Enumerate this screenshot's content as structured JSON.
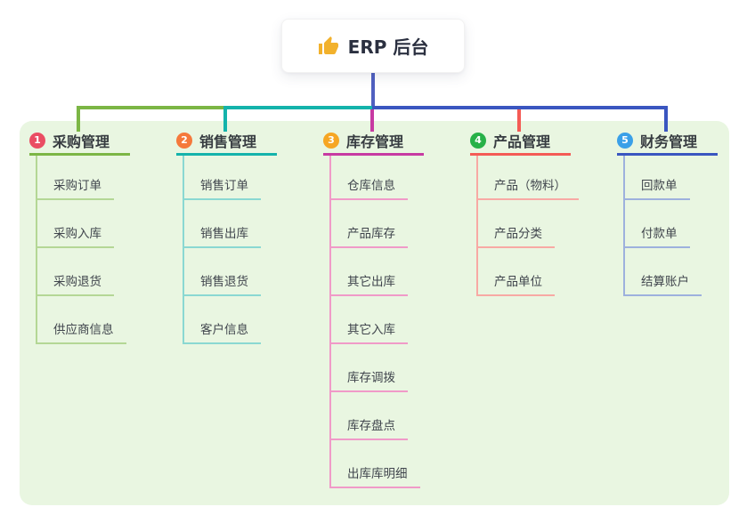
{
  "root": {
    "label": "ERP 后台",
    "icon": "thumbs-up-icon",
    "icon_color": "#f2b12c"
  },
  "colors": {
    "panel_bg": "#e9f6e1",
    "root_stem": "#5060c0",
    "card_text": "#2b3040"
  },
  "branches": [
    {
      "badge": "1",
      "label": "采购管理",
      "badge_color": "#ea4d63",
      "line_color": "#7cb645",
      "child_line_color": "#b4d795",
      "children": [
        "采购订单",
        "采购入库",
        "采购退货",
        "供应商信息"
      ]
    },
    {
      "badge": "2",
      "label": "销售管理",
      "badge_color": "#f5793b",
      "line_color": "#14b3ab",
      "child_line_color": "#8ad8d2",
      "children": [
        "销售订单",
        "销售出库",
        "销售退货",
        "客户信息"
      ]
    },
    {
      "badge": "3",
      "label": "库存管理",
      "badge_color": "#f6a623",
      "line_color": "#c73aa2",
      "child_line_color": "#f09ac8",
      "children": [
        "仓库信息",
        "产品库存",
        "其它出库",
        "其它入库",
        "库存调拨",
        "库存盘点",
        "出库库明细"
      ]
    },
    {
      "badge": "4",
      "label": "产品管理",
      "badge_color": "#27b148",
      "line_color": "#f45b55",
      "child_line_color": "#f8a9a4",
      "children": [
        "产品（物料）",
        "产品分类",
        "产品单位"
      ]
    },
    {
      "badge": "5",
      "label": "财务管理",
      "badge_color": "#3aa0e8",
      "line_color": "#3a56c0",
      "child_line_color": "#9db1dd",
      "children": [
        "回款单",
        "付款单",
        "结算账户"
      ]
    }
  ]
}
